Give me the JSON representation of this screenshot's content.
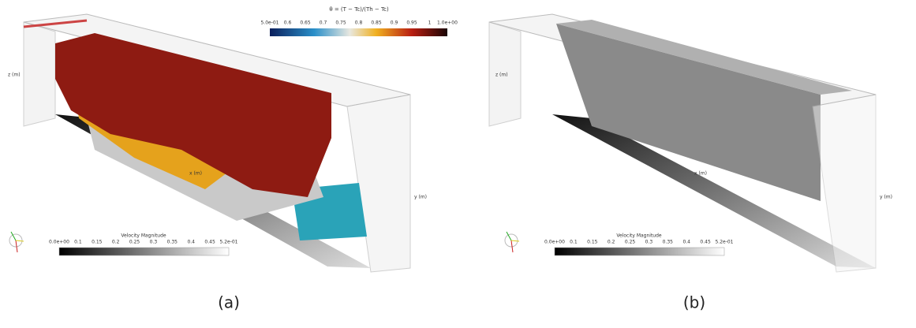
{
  "panels": [
    {
      "label": "(a)",
      "temperature_colorbar": {
        "title": "θ = (T − Tc)/(Th − Tc)",
        "ticks": [
          "5.0e-01",
          "0.6",
          "0.65",
          "0.7",
          "0.75",
          "0.8",
          "0.85",
          "0.9",
          "0.95",
          "1",
          "1.0e+00"
        ]
      },
      "velocity_colorbar": {
        "title": "Velocity Magnitude",
        "ticks": [
          "0.0e+00",
          "0.1",
          "0.15",
          "0.2",
          "0.25",
          "0.3",
          "0.35",
          "0.4",
          "0.45",
          "5.2e-01"
        ]
      },
      "axis_titles": [
        "z (m)",
        "y (m)",
        "x (m)"
      ]
    },
    {
      "label": "(b)",
      "velocity_colorbar": {
        "title": "Velocity Magnitude",
        "ticks": [
          "0.0e+00",
          "0.1",
          "0.15",
          "0.2",
          "0.25",
          "0.3",
          "0.35",
          "0.4",
          "0.45",
          "5.2e-01"
        ]
      },
      "axis_titles": [
        "z (m)",
        "y (m)",
        "x (m)"
      ]
    }
  ]
}
